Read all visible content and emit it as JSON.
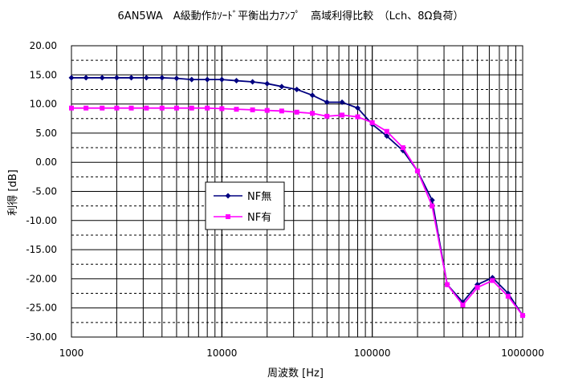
{
  "chart_data": {
    "type": "line",
    "title": "6AN5WA　A級動作ｶｿｰﾄﾞ平衡出力ｱﾝﾌﾟ　高域利得比較　（Lch、8Ω負荷）",
    "xlabel": "周波数 [Hz]",
    "ylabel": "利得 [dB]",
    "xscale": "log",
    "xlim": [
      1000,
      1000000
    ],
    "ylim": [
      -30,
      20
    ],
    "x_tick_labels": [
      "1000",
      "10000",
      "100000",
      "1000000"
    ],
    "y_tick_labels": [
      "20.00",
      "15.00",
      "10.00",
      "5.00",
      "0.00",
      "-5.00",
      "-10.00",
      "-15.00",
      "-20.00",
      "-25.00",
      "-30.00"
    ],
    "grid": true,
    "legend_position": "center-left",
    "series": [
      {
        "name": "NF無",
        "color": "#000080",
        "marker": "diamond",
        "x": [
          1000,
          1250,
          1600,
          2000,
          2500,
          3150,
          4000,
          5000,
          6300,
          8000,
          10000,
          12500,
          16000,
          20000,
          25000,
          31500,
          40000,
          50000,
          63000,
          80000,
          100000,
          125000,
          160000,
          200000,
          250000,
          315000,
          400000,
          500000,
          630000,
          800000,
          1000000
        ],
        "values": [
          14.5,
          14.5,
          14.5,
          14.5,
          14.5,
          14.5,
          14.5,
          14.4,
          14.2,
          14.2,
          14.2,
          14.0,
          13.8,
          13.5,
          13.0,
          12.5,
          11.5,
          10.3,
          10.3,
          9.3,
          6.5,
          4.5,
          2.0,
          -1.5,
          -6.5,
          -21.0,
          -24.0,
          -21.0,
          -19.8,
          -22.5,
          -26.3
        ]
      },
      {
        "name": "NF有",
        "color": "#ff00ff",
        "marker": "square",
        "x": [
          1000,
          1250,
          1600,
          2000,
          2500,
          3150,
          4000,
          5000,
          6300,
          8000,
          10000,
          12500,
          16000,
          20000,
          25000,
          31500,
          40000,
          50000,
          63000,
          80000,
          100000,
          125000,
          160000,
          200000,
          250000,
          315000,
          400000,
          500000,
          630000,
          800000,
          1000000
        ],
        "values": [
          9.3,
          9.3,
          9.3,
          9.3,
          9.3,
          9.3,
          9.3,
          9.3,
          9.3,
          9.3,
          9.2,
          9.1,
          9.0,
          8.9,
          8.8,
          8.6,
          8.4,
          7.9,
          8.1,
          7.8,
          6.8,
          5.3,
          2.5,
          -1.5,
          -7.5,
          -21.0,
          -24.5,
          -21.5,
          -20.3,
          -23.0,
          -26.3
        ]
      }
    ]
  }
}
